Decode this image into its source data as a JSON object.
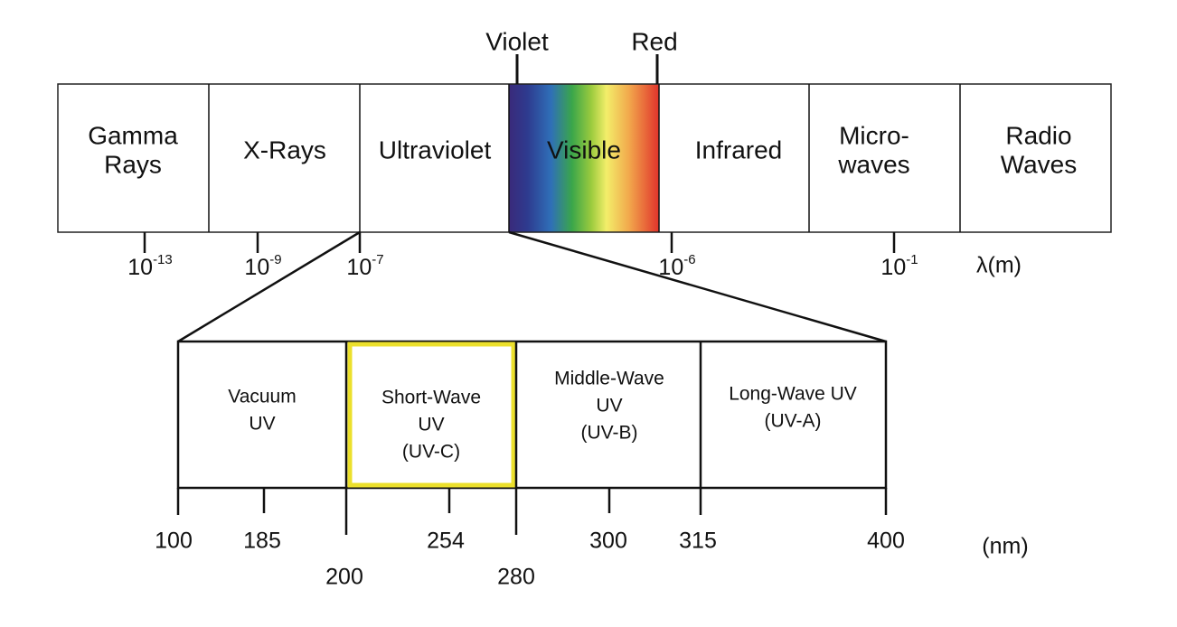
{
  "spectrum": {
    "markers": [
      "Violet",
      "Red"
    ],
    "bands": [
      {
        "lines": [
          "Gamma",
          "Rays"
        ]
      },
      {
        "lines": [
          "X-Rays"
        ]
      },
      {
        "lines": [
          "Ultraviolet"
        ]
      },
      {
        "lines": [
          "Visible"
        ]
      },
      {
        "lines": [
          "Infrared"
        ]
      },
      {
        "lines": [
          "Micro-",
          "waves"
        ]
      },
      {
        "lines": [
          "Radio",
          "Waves"
        ]
      }
    ],
    "ticks": [
      {
        "base": "10",
        "exponent": "-13"
      },
      {
        "base": "10",
        "exponent": "-9"
      },
      {
        "base": "10",
        "exponent": "-7"
      },
      {
        "base": "10",
        "exponent": "-6"
      },
      {
        "base": "10",
        "exponent": "-1"
      }
    ],
    "unit": "λ(m)"
  },
  "uv": {
    "bands": [
      {
        "lines": [
          "Vacuum",
          "UV"
        ]
      },
      {
        "lines": [
          "Short-Wave",
          "UV",
          "(UV-C)"
        ]
      },
      {
        "lines": [
          "Middle-Wave",
          "UV",
          "(UV-B)"
        ]
      },
      {
        "lines": [
          "Long-Wave UV",
          "(UV-A)"
        ]
      }
    ],
    "ticks": [
      100,
      185,
      200,
      254,
      280,
      300,
      315,
      400
    ],
    "unit": "(nm)"
  }
}
